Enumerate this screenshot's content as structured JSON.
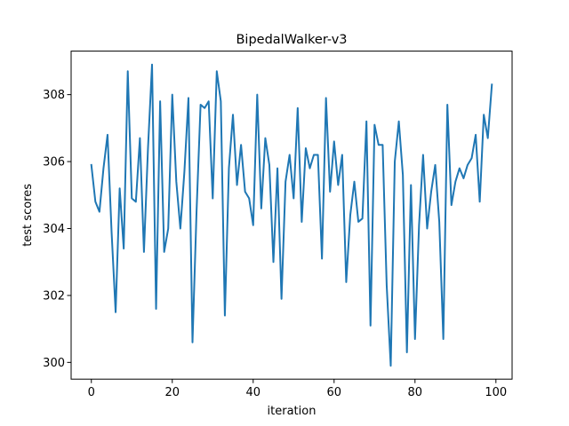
{
  "chart_data": {
    "type": "line",
    "title": "BipedalWalker-v3",
    "xlabel": "iteration",
    "ylabel": "test scores",
    "xlim": [
      -5,
      104
    ],
    "ylim": [
      299.5,
      309.3
    ],
    "xticks": [
      0,
      20,
      40,
      60,
      80,
      100
    ],
    "yticks": [
      300,
      302,
      304,
      306,
      308
    ],
    "grid": false,
    "line_color": "#1f77b4",
    "series": [
      {
        "x": [
          0,
          1,
          2,
          3,
          4,
          5,
          6,
          7,
          8,
          9,
          10,
          11,
          12,
          13,
          14,
          15,
          16,
          17,
          18,
          19,
          20,
          21,
          22,
          23,
          24,
          25,
          26,
          27,
          28,
          29,
          30,
          31,
          32,
          33,
          34,
          35,
          36,
          37,
          38,
          39,
          40,
          41,
          42,
          43,
          44,
          45,
          46,
          47,
          48,
          49,
          50,
          51,
          52,
          53,
          54,
          55,
          56,
          57,
          58,
          59,
          60,
          61,
          62,
          63,
          64,
          65,
          66,
          67,
          68,
          69,
          70,
          71,
          72,
          73,
          74,
          75,
          76,
          77,
          78,
          79,
          80,
          81,
          82,
          83,
          84,
          85,
          86,
          87,
          88,
          89,
          90,
          91,
          92,
          93,
          94,
          95,
          96,
          97,
          98,
          99
        ],
        "values": [
          305.9,
          304.8,
          304.5,
          305.8,
          306.8,
          303.9,
          301.5,
          305.2,
          303.4,
          308.7,
          304.9,
          304.8,
          306.7,
          303.3,
          306.4,
          308.9,
          301.6,
          307.8,
          303.3,
          304.0,
          308.0,
          305.4,
          304.0,
          305.7,
          307.9,
          300.6,
          304.5,
          307.7,
          307.6,
          307.8,
          304.9,
          308.7,
          307.8,
          301.4,
          305.8,
          307.4,
          305.3,
          306.5,
          305.1,
          304.9,
          304.1,
          308.0,
          304.6,
          306.7,
          305.9,
          303.0,
          305.8,
          301.9,
          305.4,
          306.2,
          304.9,
          307.6,
          304.2,
          306.4,
          305.8,
          306.2,
          306.2,
          303.1,
          307.9,
          305.1,
          306.6,
          305.3,
          306.2,
          302.4,
          304.4,
          305.4,
          304.2,
          304.3,
          307.2,
          301.1,
          307.1,
          306.5,
          306.5,
          302.3,
          299.9,
          306.0,
          307.2,
          305.6,
          300.3,
          305.3,
          300.7,
          304.1,
          306.2,
          304.0,
          305.1,
          305.9,
          304.2,
          300.7,
          307.7,
          304.7,
          305.4,
          305.8,
          305.5,
          305.9,
          306.1,
          306.8,
          304.8,
          307.4,
          306.7,
          308.3
        ]
      }
    ]
  }
}
